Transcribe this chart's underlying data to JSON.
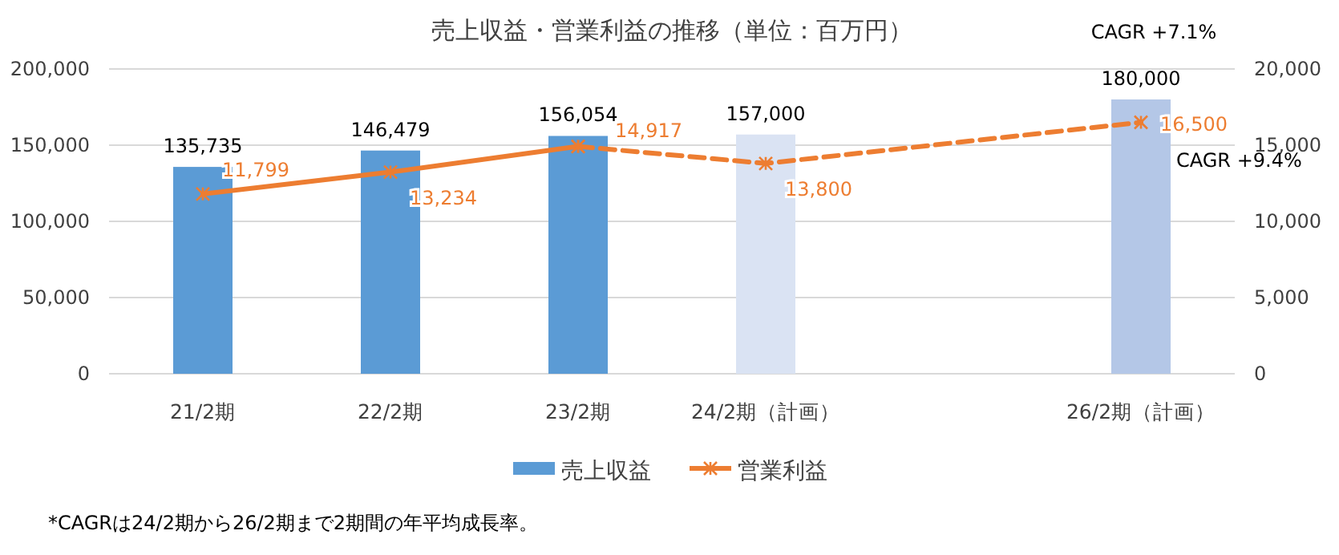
{
  "chart_data": {
    "type": "bar",
    "title": "売上収益・営業利益の推移（単位：百万円）",
    "categories": [
      "21/2期",
      "22/2期",
      "23/2期",
      "24/2期（計画）",
      null,
      "26/2期（計画）"
    ],
    "series": [
      {
        "name": "売上収益",
        "color": "#5b9bd5",
        "colors": [
          "#5b9bd5",
          "#5b9bd5",
          "#5b9bd5",
          "#dae3f3",
          null,
          "#b4c7e7"
        ],
        "values": [
          135735,
          146479,
          156054,
          157000,
          null,
          180000
        ],
        "value_labels": [
          "135,735",
          "146,479",
          "156,054",
          "157,000",
          null,
          "180,000"
        ]
      },
      {
        "name": "営業利益",
        "type": "line",
        "axis": "y2",
        "color": "#ed7d31",
        "line_style": "solid",
        "marker": "cross",
        "values": [
          11799,
          13234,
          14917,
          null,
          null,
          null
        ],
        "value_labels": [
          "11,799",
          "13,234",
          "14,917",
          null,
          null,
          null
        ]
      },
      {
        "type": "line",
        "axis": "y2",
        "color": "#ed7d31",
        "line_style": "dashed",
        "marker": "cross",
        "values": [
          null,
          null,
          14917,
          13800,
          null,
          16500
        ],
        "value_labels": [
          null,
          null,
          null,
          "13,800",
          null,
          "16,500"
        ]
      }
    ],
    "ylim": [
      0,
      200000
    ],
    "yticks": [
      0,
      {
        "value": 50000,
        "label": "50,000"
      },
      {
        "value": 100000,
        "label": "100,000"
      },
      {
        "value": 150000,
        "label": "150,000"
      },
      {
        "value": 200000,
        "label": "200,000"
      }
    ],
    "y2lim": [
      0,
      20000
    ],
    "y2ticks": [
      0,
      {
        "value": 5000,
        "label": "5,000"
      },
      {
        "value": 10000,
        "label": "10,000"
      },
      {
        "value": 15000,
        "label": "15,000"
      },
      {
        "value": 20000,
        "label": "20,000"
      }
    ],
    "grid": "y",
    "legend": "bottom",
    "annotations": [
      "CAGR +7.1%",
      "CAGR +9.4%",
      "*CAGRは24/2期から26/2期まで2期間の年平均成長率。"
    ]
  }
}
